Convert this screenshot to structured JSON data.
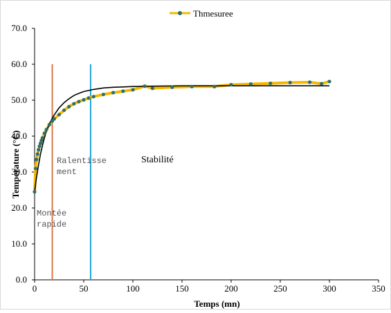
{
  "chart_data": {
    "type": "line",
    "title": "",
    "xlabel": "Temps (mn)",
    "ylabel": "Temperature (°C)",
    "xlim": [
      0,
      350
    ],
    "ylim": [
      0,
      70
    ],
    "x_ticks": [
      "0",
      "50",
      "100",
      "150",
      "200",
      "250",
      "300",
      "350"
    ],
    "y_ticks": [
      "0.0",
      "10.0",
      "20.0",
      "30.0",
      "40.0",
      "50.0",
      "60.0",
      "70.0"
    ],
    "grid": false,
    "legend": {
      "position": "top-center",
      "entries": [
        "Thmesuree"
      ]
    },
    "series": [
      {
        "name": "Thmesuree",
        "line_color": "#f5b800",
        "marker_color": "#2f6f6a",
        "x": [
          0,
          1,
          2,
          3,
          4,
          5,
          6,
          7,
          8,
          10,
          12,
          15,
          18,
          20,
          25,
          30,
          35,
          40,
          45,
          50,
          55,
          60,
          70,
          80,
          90,
          100,
          112,
          120,
          140,
          160,
          183,
          200,
          220,
          240,
          260,
          280,
          292,
          300
        ],
        "y": [
          24.5,
          31.0,
          33.5,
          35.0,
          36.2,
          37.2,
          38.0,
          38.8,
          39.5,
          40.8,
          41.8,
          43.2,
          44.2,
          44.8,
          46.0,
          47.2,
          48.2,
          49.0,
          49.6,
          50.1,
          50.6,
          51.0,
          51.6,
          52.1,
          52.5,
          52.9,
          53.9,
          53.3,
          53.6,
          53.8,
          53.8,
          54.3,
          54.5,
          54.7,
          54.9,
          55.0,
          54.6,
          55.2
        ]
      },
      {
        "name": "",
        "type": "fit",
        "line_color": "#000000",
        "x": [
          0,
          2,
          4,
          6,
          8,
          10,
          12,
          15,
          18,
          20,
          25,
          30,
          35,
          40,
          45,
          50,
          60,
          70,
          80,
          90,
          100,
          120,
          150,
          200,
          250,
          300
        ],
        "y": [
          24.5,
          28.6,
          32.0,
          35.0,
          37.4,
          39.5,
          41.3,
          43.4,
          45.0,
          45.9,
          47.9,
          49.3,
          50.4,
          51.3,
          51.9,
          52.4,
          53.0,
          53.4,
          53.6,
          53.7,
          53.8,
          53.9,
          54.0,
          54.0,
          54.0,
          54.0
        ]
      }
    ],
    "vertical_lines": [
      {
        "x": 18,
        "y_top": 60,
        "color": "#d97845"
      },
      {
        "x": 57,
        "y_top": 60,
        "color": "#1aa3d9"
      }
    ],
    "annotations": [
      {
        "text": "Montée\nrapide",
        "style": "mono"
      },
      {
        "text": "Ralentisse\nment",
        "style": "mono"
      },
      {
        "text": "Stabilité",
        "style": "serif"
      }
    ]
  }
}
